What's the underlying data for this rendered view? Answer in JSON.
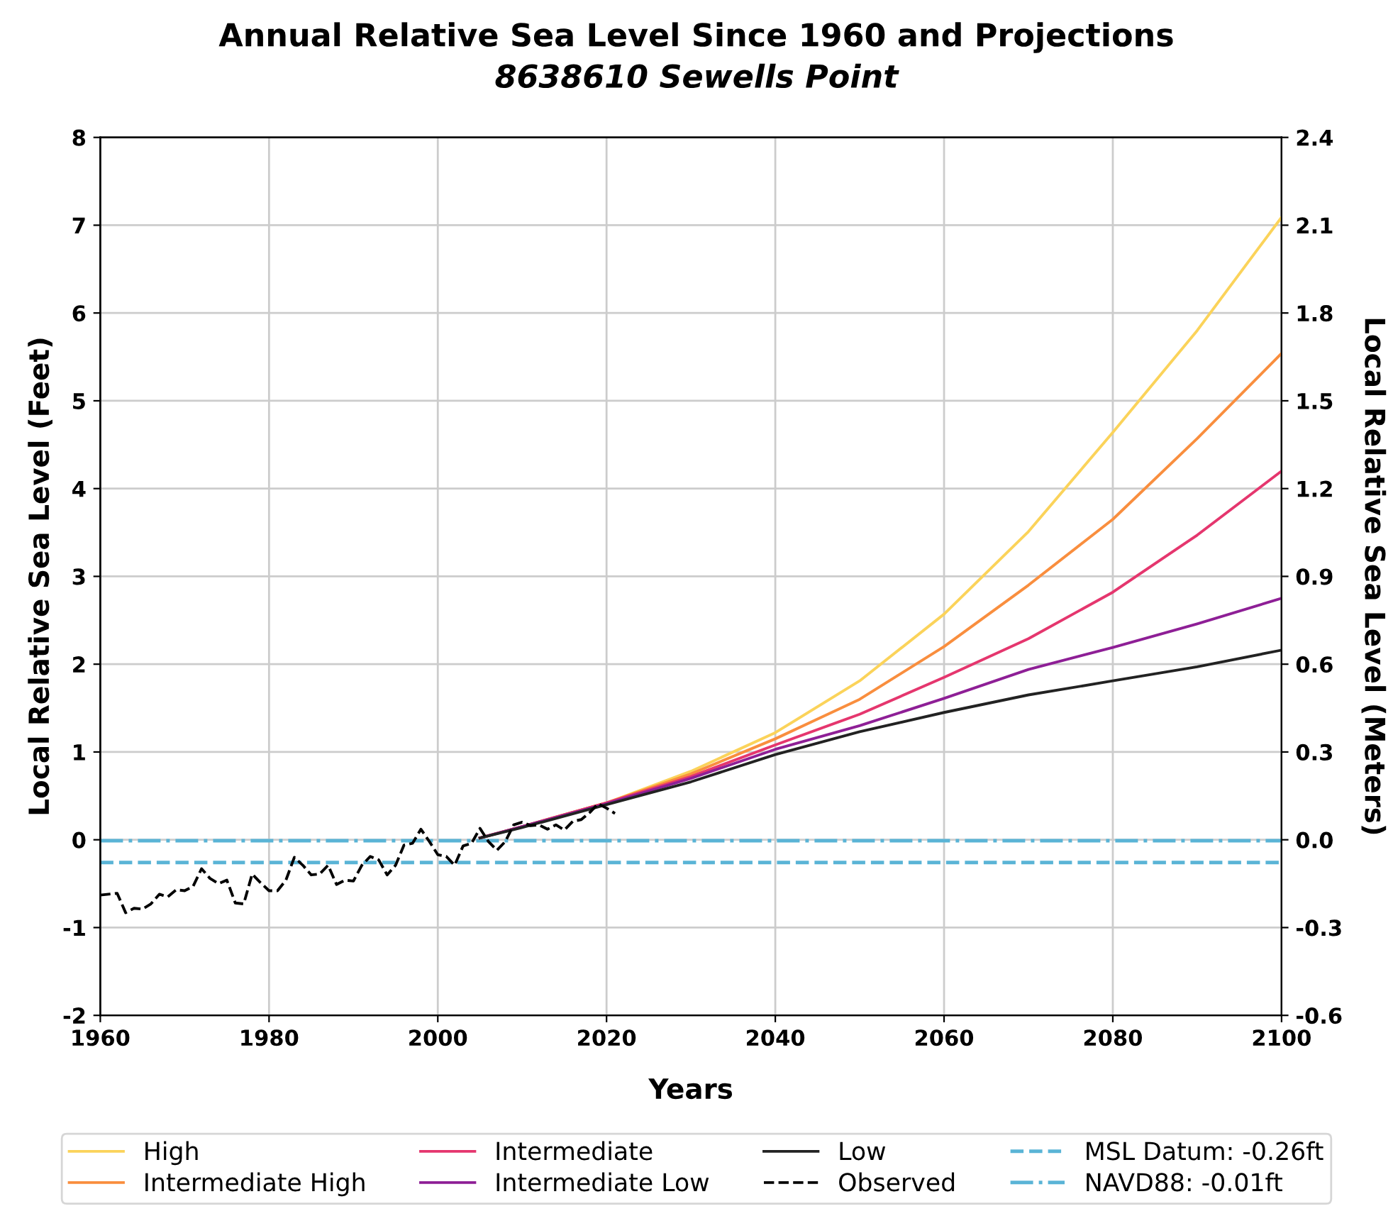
{
  "chart_data": {
    "type": "line",
    "title": "Annual Relative Sea Level Since 1960 and Projections",
    "subtitle": "8638610 Sewells Point",
    "xlabel": "Years",
    "ylabel": "Local Relative Sea Level (Feet)",
    "y2label": "Local Relative Sea Level (Meters)",
    "xlim": [
      1960,
      2100
    ],
    "xticks": [
      1960,
      1980,
      2000,
      2020,
      2040,
      2060,
      2080,
      2100
    ],
    "ylim": [
      -2,
      8
    ],
    "yticks": [
      -2,
      -1,
      0,
      1,
      2,
      3,
      4,
      5,
      6,
      7,
      8
    ],
    "y2lim": [
      -0.6,
      2.4
    ],
    "y2ticks": [
      -0.6,
      -0.3,
      {
        "value": 0,
        "label": "0.0"
      },
      0.3,
      0.6,
      0.9,
      1.2,
      1.5,
      1.8,
      2.1,
      2.4
    ],
    "grid": true,
    "legend": "bottom",
    "marker": "none",
    "series": [
      {
        "name": "High",
        "color": "#fbd35a",
        "line_style": "solid",
        "x": [
          2005,
          2010,
          2020,
          2030,
          2040,
          2050,
          2060,
          2070,
          2080,
          2090,
          2100
        ],
        "values": [
          0.02,
          0.15,
          0.42,
          0.78,
          1.22,
          1.81,
          2.57,
          3.51,
          4.64,
          5.8,
          7.09
        ]
      },
      {
        "name": "Intermediate High",
        "color": "#f98e3e",
        "line_style": "solid",
        "x": [
          2005,
          2010,
          2020,
          2030,
          2040,
          2050,
          2060,
          2070,
          2080,
          2090,
          2100
        ],
        "values": [
          0.02,
          0.15,
          0.42,
          0.75,
          1.15,
          1.6,
          2.2,
          2.9,
          3.65,
          4.57,
          5.54
        ]
      },
      {
        "name": "Intermediate",
        "color": "#e5366e",
        "line_style": "solid",
        "x": [
          2005,
          2010,
          2020,
          2030,
          2040,
          2050,
          2060,
          2070,
          2080,
          2090,
          2100
        ],
        "values": [
          0.02,
          0.15,
          0.42,
          0.72,
          1.08,
          1.43,
          1.85,
          2.29,
          2.82,
          3.47,
          4.2
        ]
      },
      {
        "name": "Intermediate Low",
        "color": "#8e1f96",
        "line_style": "solid",
        "x": [
          2005,
          2010,
          2020,
          2030,
          2040,
          2050,
          2060,
          2070,
          2080,
          2090,
          2100
        ],
        "values": [
          0.02,
          0.15,
          0.41,
          0.7,
          1.03,
          1.3,
          1.61,
          1.94,
          2.19,
          2.46,
          2.75
        ]
      },
      {
        "name": "Low",
        "color": "#222222",
        "line_style": "solid",
        "x": [
          2005,
          2010,
          2020,
          2030,
          2040,
          2050,
          2060,
          2070,
          2080,
          2090,
          2100
        ],
        "values": [
          0.02,
          0.14,
          0.4,
          0.66,
          0.97,
          1.23,
          1.45,
          1.65,
          1.81,
          1.97,
          2.16
        ]
      },
      {
        "name": "Observed",
        "color": "#000000",
        "line_style": "dashed",
        "x": [
          1960,
          1961,
          1962,
          1963,
          1964,
          1965,
          1966,
          1967,
          1968,
          1969,
          1970,
          1971,
          1972,
          1973,
          1974,
          1975,
          1976,
          1977,
          1978,
          1979,
          1980,
          1981,
          1982,
          1983,
          1984,
          1985,
          1986,
          1987,
          1988,
          1989,
          1990,
          1991,
          1992,
          1993,
          1994,
          1995,
          1996,
          1997,
          1998,
          1999,
          2000,
          2001,
          2002,
          2003,
          2004,
          2005,
          2006,
          2007,
          2008,
          2009,
          2010,
          2011,
          2012,
          2013,
          2014,
          2015,
          2016,
          2017,
          2018,
          2019,
          2020,
          2021
        ],
        "values": [
          -0.63,
          -0.62,
          -0.61,
          -0.83,
          -0.78,
          -0.79,
          -0.73,
          -0.62,
          -0.65,
          -0.57,
          -0.58,
          -0.53,
          -0.33,
          -0.44,
          -0.5,
          -0.46,
          -0.72,
          -0.73,
          -0.39,
          -0.49,
          -0.58,
          -0.58,
          -0.46,
          -0.2,
          -0.29,
          -0.4,
          -0.39,
          -0.29,
          -0.51,
          -0.46,
          -0.47,
          -0.29,
          -0.19,
          -0.23,
          -0.4,
          -0.29,
          -0.06,
          -0.04,
          0.12,
          -0.02,
          -0.17,
          -0.19,
          -0.29,
          -0.07,
          -0.04,
          0.13,
          -0.02,
          -0.12,
          -0.02,
          0.17,
          0.2,
          0.16,
          0.17,
          0.12,
          0.17,
          0.11,
          0.21,
          0.23,
          0.31,
          0.41,
          0.36,
          0.3
        ]
      }
    ],
    "ref_lines": [
      {
        "axis": "y",
        "value": -0.26,
        "label": "MSL Datum: -0.26ft",
        "color": "#5ab4d6",
        "line_style": "dashed"
      },
      {
        "axis": "y",
        "value": -0.01,
        "label": "NAVD88: -0.01ft",
        "color": "#5ab4d6",
        "line_style": "dashdot"
      }
    ]
  }
}
